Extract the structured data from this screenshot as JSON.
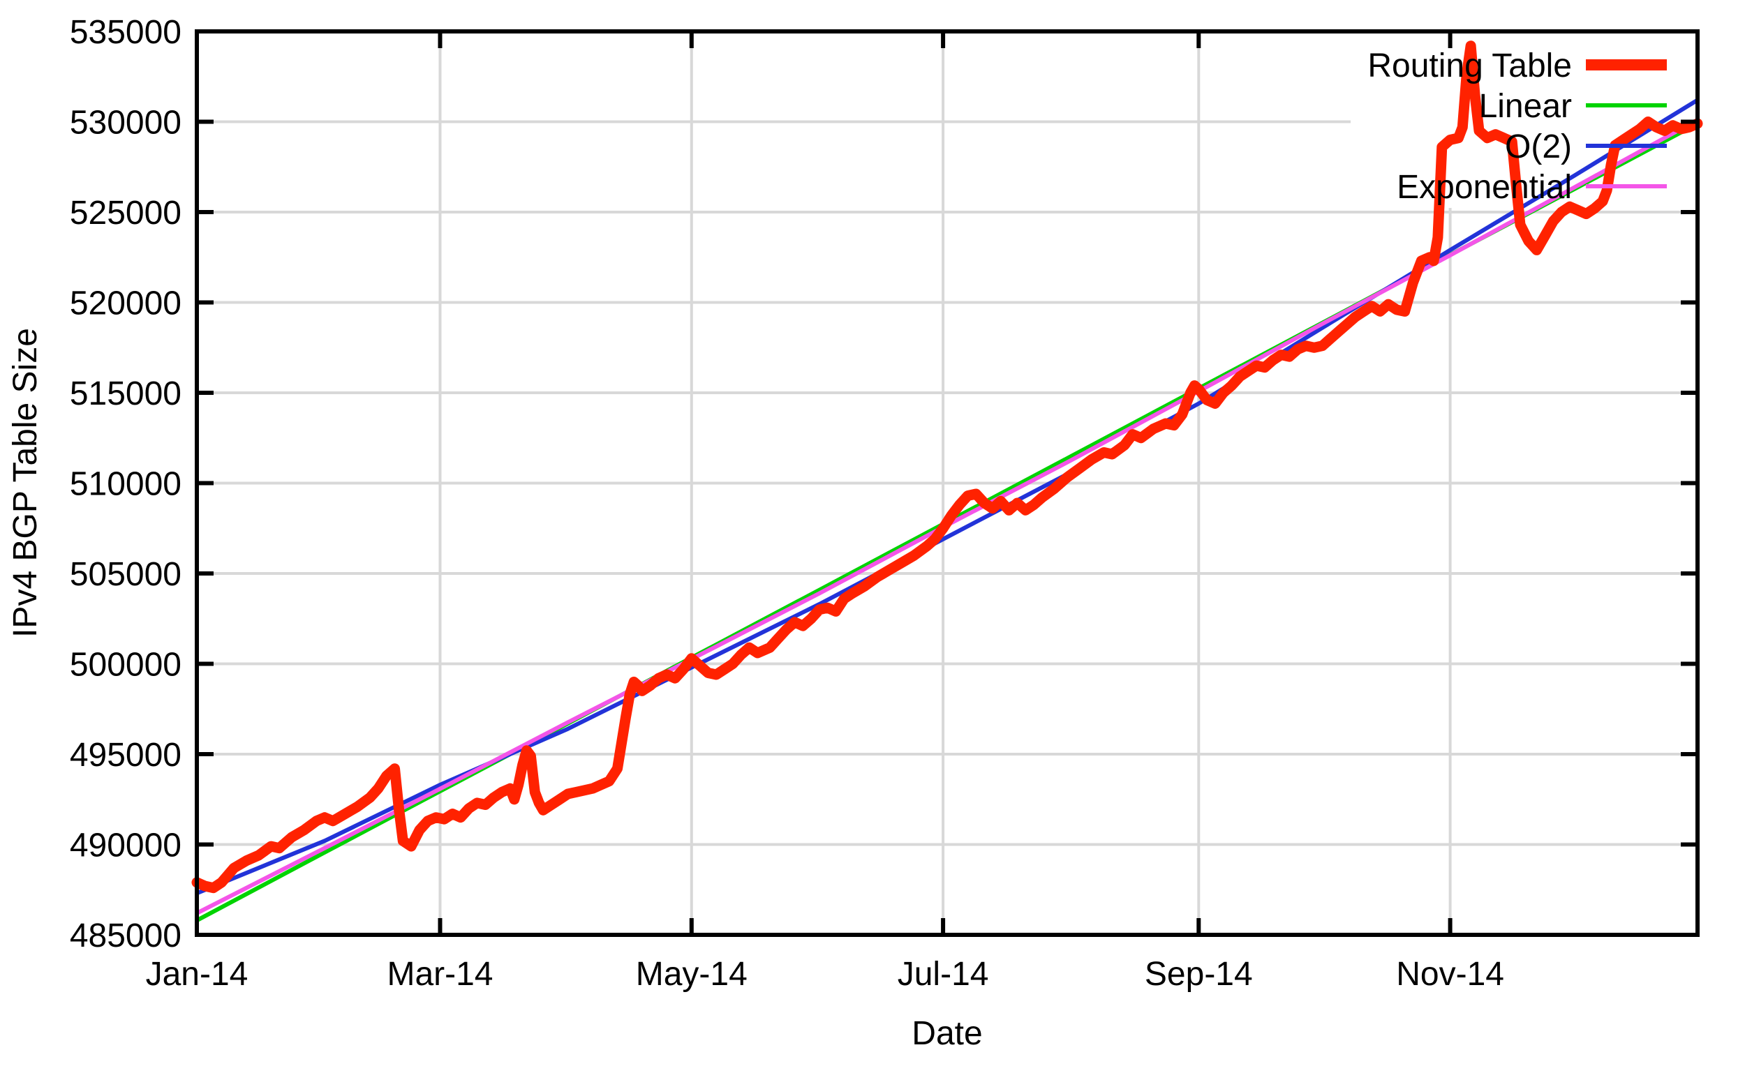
{
  "figure": {
    "xlabel": "Date",
    "ylabel": "IPv4 BGP Table Size"
  },
  "chart_data": {
    "type": "line",
    "title": "",
    "xlabel": "Date",
    "ylabel": "IPv4 BGP Table Size",
    "x_unit": "day of year 2014",
    "xlim_days": [
      0,
      364
    ],
    "ylim": [
      485000,
      535000
    ],
    "grid": true,
    "grid_color": "#d8d8d8",
    "axis_color": "#000000",
    "background_color": "#ffffff",
    "legend_position": "top-right",
    "legend_opaque_box": true,
    "x_ticks": [
      {
        "day": 0,
        "label": "Jan-14"
      },
      {
        "day": 59,
        "label": "Mar-14"
      },
      {
        "day": 120,
        "label": "May-14"
      },
      {
        "day": 181,
        "label": "Jul-14"
      },
      {
        "day": 243,
        "label": "Sep-14"
      },
      {
        "day": 304,
        "label": "Nov-14"
      }
    ],
    "y_ticks": [
      485000,
      490000,
      495000,
      500000,
      505000,
      510000,
      515000,
      520000,
      525000,
      530000,
      535000
    ],
    "series": [
      {
        "name": "Routing Table",
        "color": "#ff2200",
        "line_width": 15,
        "x": [
          0,
          2,
          4,
          6,
          9,
          12,
          15,
          18,
          20,
          23,
          26,
          29,
          31,
          33,
          36,
          39,
          42,
          44,
          46,
          48,
          49,
          50,
          52,
          54,
          56,
          58,
          60,
          62,
          64,
          66,
          68,
          70,
          72,
          74,
          76,
          77,
          78,
          79,
          80,
          81,
          82,
          83,
          84,
          86,
          88,
          90,
          92,
          94,
          96,
          98,
          100,
          102,
          103,
          104,
          105,
          106,
          107,
          108,
          110,
          112,
          114,
          116,
          118,
          120,
          122,
          124,
          126,
          128,
          130,
          132,
          134,
          136,
          139,
          141,
          143,
          145,
          147,
          149,
          151,
          153,
          155,
          157,
          159,
          162,
          165,
          168,
          171,
          174,
          177,
          179,
          181,
          183,
          185,
          187,
          189,
          191,
          193,
          195,
          197,
          199,
          201,
          203,
          205,
          208,
          211,
          214,
          217,
          220,
          222,
          225,
          227,
          229,
          232,
          235,
          237,
          239,
          241,
          242,
          243,
          245,
          247,
          249,
          251,
          253,
          255,
          257,
          259,
          261,
          263,
          265,
          267,
          269,
          271,
          273,
          275,
          277,
          279,
          281,
          283,
          285,
          287,
          289,
          291,
          293,
          295,
          297,
          299,
          300,
          301,
          302,
          304,
          306,
          307,
          308,
          309,
          310,
          311,
          313,
          315,
          317,
          319,
          320,
          321,
          323,
          325,
          327,
          329,
          331,
          333,
          335,
          337,
          339,
          341,
          342,
          343,
          344,
          346,
          348,
          350,
          352,
          354,
          356,
          358,
          360,
          362,
          364
        ],
        "y": [
          487900,
          487700,
          487600,
          487900,
          488700,
          489100,
          489400,
          489900,
          489800,
          490400,
          490800,
          491300,
          491500,
          491300,
          491700,
          492100,
          492600,
          493100,
          493800,
          494200,
          492000,
          490200,
          489900,
          490800,
          491300,
          491500,
          491400,
          491700,
          491500,
          492000,
          492300,
          492200,
          492600,
          492900,
          493100,
          492500,
          493300,
          494400,
          495200,
          494900,
          492900,
          492300,
          491900,
          492200,
          492500,
          492800,
          492900,
          493000,
          493100,
          493300,
          493500,
          494200,
          495600,
          497000,
          498300,
          499000,
          498800,
          498500,
          498800,
          499200,
          499400,
          499200,
          499700,
          500300,
          499900,
          499500,
          499400,
          499700,
          500000,
          500500,
          500900,
          500600,
          500900,
          501400,
          501900,
          502300,
          502100,
          502500,
          503000,
          503100,
          502900,
          503600,
          503900,
          504300,
          504800,
          505200,
          505600,
          506000,
          506500,
          506900,
          507500,
          508200,
          508800,
          509300,
          509400,
          508900,
          508600,
          509000,
          508500,
          508900,
          508500,
          508800,
          509200,
          509700,
          510300,
          510800,
          511300,
          511700,
          511600,
          512100,
          512700,
          512500,
          513000,
          513300,
          513200,
          513800,
          515000,
          515400,
          515200,
          514600,
          514400,
          515000,
          515400,
          515900,
          516200,
          516500,
          516400,
          516800,
          517100,
          517000,
          517400,
          517600,
          517500,
          517600,
          518000,
          518400,
          518800,
          519200,
          519500,
          519800,
          519500,
          519900,
          519600,
          519500,
          521100,
          522300,
          522500,
          522300,
          523600,
          528600,
          529000,
          529100,
          529700,
          532600,
          534200,
          531500,
          529500,
          529100,
          529300,
          529100,
          528900,
          526500,
          524300,
          523400,
          522900,
          523700,
          524500,
          525000,
          525300,
          525100,
          524900,
          525200,
          525600,
          526200,
          527600,
          528700,
          529000,
          529300,
          529600,
          530000,
          529700,
          529500,
          529800,
          529600,
          529700,
          529900
        ]
      },
      {
        "name": "Linear",
        "color": "#00d300",
        "line_width": 6,
        "x": [
          0,
          31,
          59,
          90,
          120,
          151,
          181,
          212,
          243,
          273,
          304,
          334,
          364
        ],
        "y": [
          485800,
          489560,
          492950,
          496700,
          500340,
          504090,
          507730,
          511480,
          515240,
          518870,
          522630,
          526260,
          529900
        ]
      },
      {
        "name": "O(2)",
        "color": "#2233d8",
        "line_width": 6,
        "x": [
          0,
          31,
          59,
          90,
          120,
          151,
          181,
          212,
          243,
          273,
          304,
          334,
          364
        ],
        "y": [
          487300,
          490200,
          493300,
          496400,
          499800,
          503300,
          506900,
          510600,
          514400,
          518600,
          522900,
          527000,
          531200
        ]
      },
      {
        "name": "Exponential",
        "color": "#f455e8",
        "line_width": 6,
        "x": [
          0,
          31,
          59,
          90,
          120,
          151,
          181,
          212,
          243,
          273,
          304,
          334,
          364
        ],
        "y": [
          486200,
          489800,
          493080,
          496760,
          500260,
          503900,
          507560,
          511260,
          515080,
          518820,
          522610,
          526350,
          530100
        ]
      }
    ]
  }
}
